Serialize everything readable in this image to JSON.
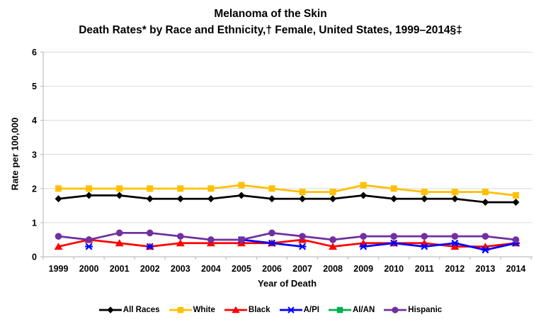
{
  "title": {
    "line1": "Melanoma of the Skin",
    "line2": "Death Rates* by Race and Ethnicity,† Female, United States, 1999–2014§‡"
  },
  "chart_data": {
    "type": "line",
    "title": "Melanoma of the Skin Death Rates by Race and Ethnicity, Female, United States, 1999–2014",
    "xlabel": "Year of Death",
    "ylabel": "Rate per 100,000",
    "ylim": [
      0,
      6
    ],
    "yticks": [
      0,
      1,
      2,
      3,
      4,
      5,
      6
    ],
    "grid": true,
    "legend_position": "bottom",
    "categories": [
      "1999",
      "2000",
      "2001",
      "2002",
      "2003",
      "2004",
      "2005",
      "2006",
      "2007",
      "2008",
      "2009",
      "2010",
      "2011",
      "2012",
      "2013",
      "2014"
    ],
    "series": [
      {
        "name": "All Races",
        "color": "#000000",
        "marker": "diamond",
        "values": [
          1.7,
          1.8,
          1.8,
          1.7,
          1.7,
          1.7,
          1.8,
          1.7,
          1.7,
          1.7,
          1.8,
          1.7,
          1.7,
          1.7,
          1.6,
          1.6
        ]
      },
      {
        "name": "White",
        "color": "#FFC000",
        "marker": "square",
        "values": [
          2.0,
          2.0,
          2.0,
          2.0,
          2.0,
          2.0,
          2.1,
          2.0,
          1.9,
          1.9,
          2.1,
          2.0,
          1.9,
          1.9,
          1.9,
          1.8
        ]
      },
      {
        "name": "Black",
        "color": "#FF0000",
        "marker": "triangle",
        "values": [
          0.3,
          0.5,
          0.4,
          0.3,
          0.4,
          0.4,
          0.4,
          0.4,
          0.5,
          0.3,
          0.4,
          0.4,
          0.4,
          0.3,
          0.3,
          0.4
        ]
      },
      {
        "name": "A/PI",
        "color": "#0000FF",
        "marker": "x-star",
        "values": [
          null,
          0.3,
          null,
          0.3,
          null,
          null,
          0.5,
          0.4,
          0.3,
          null,
          0.3,
          0.4,
          0.3,
          0.4,
          0.2,
          0.4
        ]
      },
      {
        "name": "AI/AN",
        "color": "#00B050",
        "marker": "square",
        "values": [
          null,
          null,
          null,
          null,
          null,
          null,
          null,
          null,
          null,
          null,
          null,
          null,
          null,
          null,
          null,
          null
        ]
      },
      {
        "name": "Hispanic",
        "color": "#7030A0",
        "marker": "circle",
        "values": [
          0.6,
          0.5,
          0.7,
          0.7,
          0.6,
          0.5,
          0.5,
          0.7,
          0.6,
          0.5,
          0.6,
          0.6,
          0.6,
          0.6,
          0.6,
          0.5
        ]
      }
    ]
  },
  "style_colors": {
    "gridline": "#D9D9D9",
    "axis_line": "#BFBFBF",
    "tick_mark": "#BFBFBF",
    "text": "#000000"
  }
}
